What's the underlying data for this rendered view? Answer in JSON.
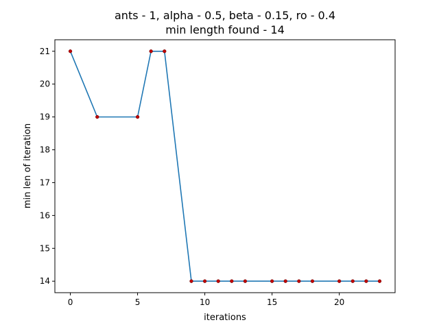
{
  "chart_data": {
    "type": "line",
    "title_line1": "ants - 1, alpha - 0.5, beta - 0.15, ro - 0.4",
    "title_line2": "min length found - 14",
    "xlabel": "iterations",
    "ylabel": "min len of iteration",
    "x_ticks": [
      0,
      5,
      10,
      15,
      20
    ],
    "y_ticks": [
      14,
      15,
      16,
      17,
      18,
      19,
      20,
      21
    ],
    "xlim": [
      -1.15,
      24.15
    ],
    "ylim": [
      13.65,
      21.35
    ],
    "grid": false,
    "series": [
      {
        "x": [
          0,
          2,
          5,
          6,
          7,
          9,
          10,
          11,
          12,
          13,
          15,
          16,
          17,
          18,
          20,
          21,
          22,
          23
        ],
        "y": [
          21,
          19,
          19,
          21,
          21,
          14,
          14,
          14,
          14,
          14,
          14,
          14,
          14,
          14,
          14,
          14,
          14,
          14
        ],
        "line_color": "#1f77b4",
        "marker_color": "#c00000"
      }
    ]
  }
}
